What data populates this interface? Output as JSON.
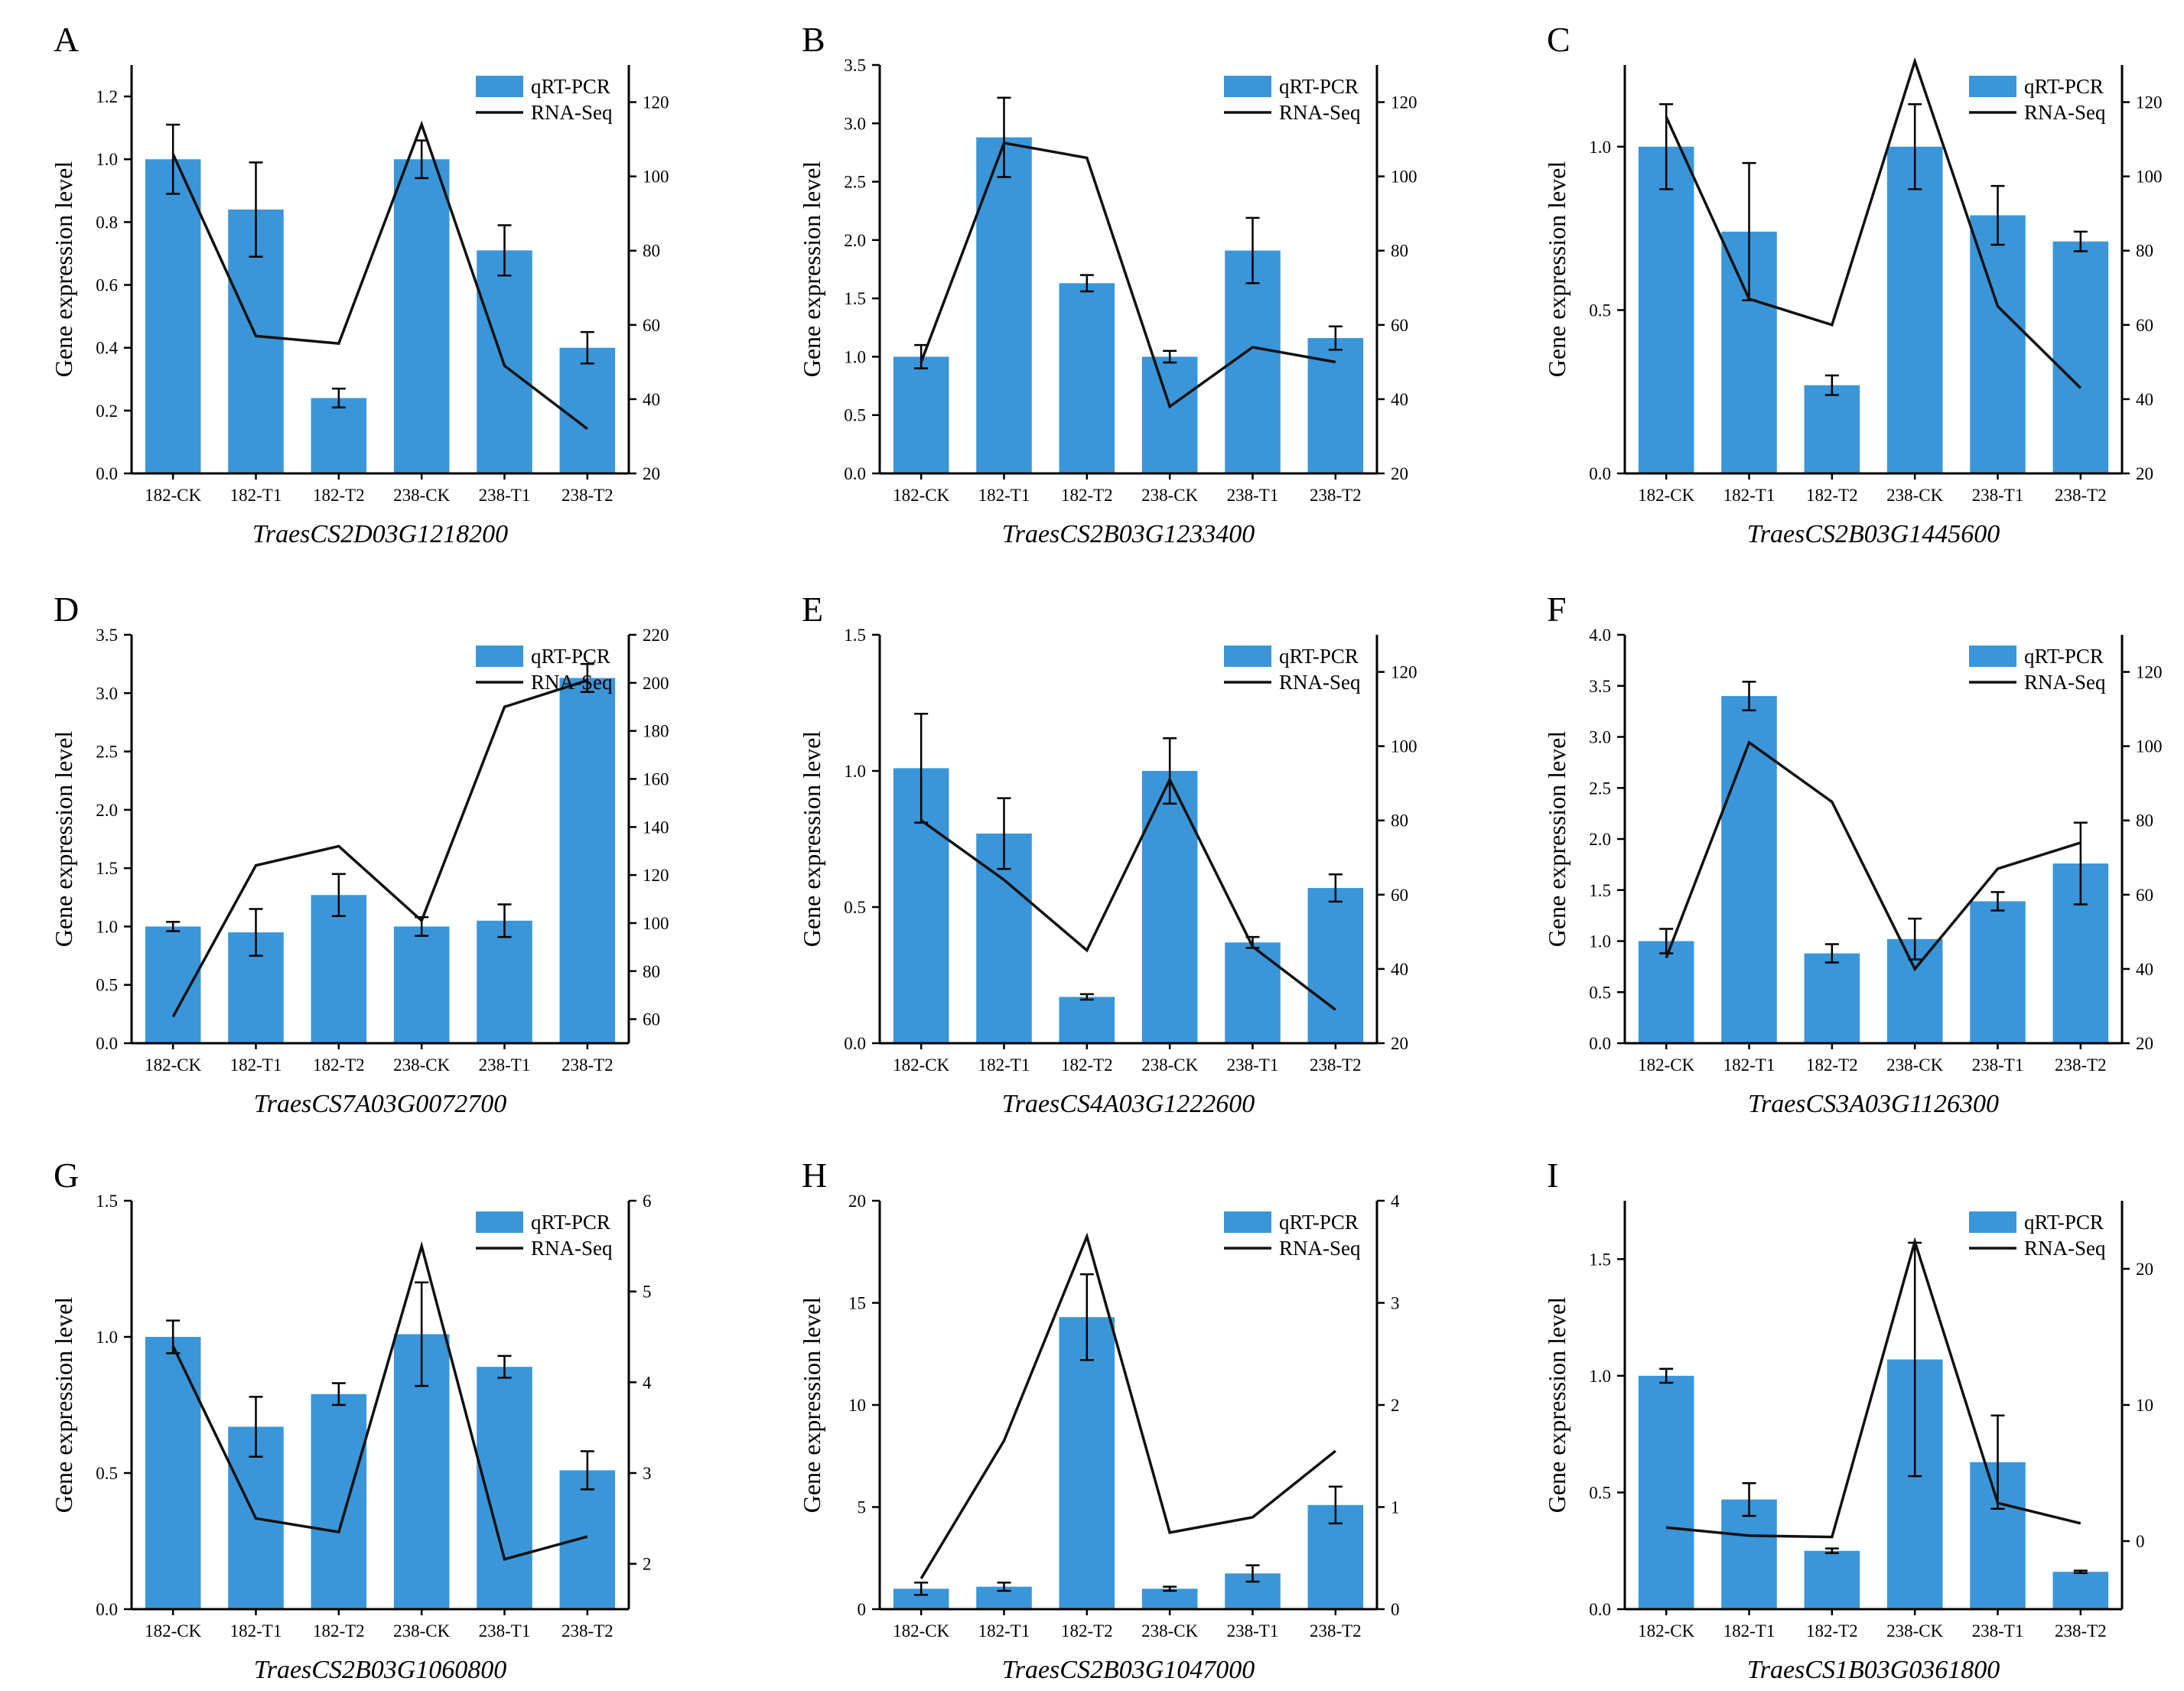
{
  "colors": {
    "bar": "#3a96d9",
    "line": "#111111",
    "axis": "#000000"
  },
  "legend": {
    "bar_label": "qRT-PCR",
    "line_label": "RNA-Seq"
  },
  "y_axis_label": "Gene expression level",
  "chart_data": [
    {
      "panel": "A",
      "type": "bar+line",
      "title": "TraesCS2D03G1218200",
      "categories": [
        "182-CK",
        "182-T1",
        "182-T2",
        "238-CK",
        "238-T1",
        "238-T2"
      ],
      "series": [
        {
          "name": "qRT-PCR",
          "type": "bar",
          "axis": "left",
          "values": [
            1.0,
            0.84,
            0.24,
            1.0,
            0.71,
            0.4
          ],
          "errors": [
            0.11,
            0.15,
            0.03,
            0.06,
            0.08,
            0.05
          ]
        },
        {
          "name": "RNA-Seq",
          "type": "line",
          "axis": "right",
          "values": [
            106,
            57,
            55,
            114,
            49,
            32
          ]
        }
      ],
      "ylim_left": [
        0,
        1.3
      ],
      "yticks_left": [
        0.0,
        0.2,
        0.4,
        0.6,
        0.8,
        1.0,
        1.2
      ],
      "ylim_right": [
        20,
        130
      ],
      "yticks_right": [
        20,
        40,
        60,
        80,
        100,
        120
      ],
      "legend_pos": "top-right"
    },
    {
      "panel": "B",
      "type": "bar+line",
      "title": "TraesCS2B03G1233400",
      "categories": [
        "182-CK",
        "182-T1",
        "182-T2",
        "238-CK",
        "238-T1",
        "238-T2"
      ],
      "series": [
        {
          "name": "qRT-PCR",
          "type": "bar",
          "axis": "left",
          "values": [
            1.0,
            2.88,
            1.63,
            1.0,
            1.91,
            1.16
          ],
          "errors": [
            0.1,
            0.34,
            0.07,
            0.05,
            0.28,
            0.1
          ]
        },
        {
          "name": "RNA-Seq",
          "type": "line",
          "axis": "right",
          "values": [
            50,
            109,
            105,
            38,
            54,
            50
          ]
        }
      ],
      "ylim_left": [
        0,
        3.5
      ],
      "yticks_left": [
        0.0,
        0.5,
        1.0,
        1.5,
        2.0,
        2.5,
        3.0,
        3.5
      ],
      "ylim_right": [
        20,
        130
      ],
      "yticks_right": [
        20,
        40,
        60,
        80,
        100,
        120
      ],
      "legend_pos": "top-right"
    },
    {
      "panel": "C",
      "type": "bar+line",
      "title": "TraesCS2B03G1445600",
      "categories": [
        "182-CK",
        "182-T1",
        "182-T2",
        "238-CK",
        "238-T1",
        "238-T2"
      ],
      "series": [
        {
          "name": "qRT-PCR",
          "type": "bar",
          "axis": "left",
          "values": [
            1.0,
            0.74,
            0.27,
            1.0,
            0.79,
            0.71
          ],
          "errors": [
            0.13,
            0.21,
            0.03,
            0.13,
            0.09,
            0.03
          ]
        },
        {
          "name": "RNA-Seq",
          "type": "line",
          "axis": "right",
          "values": [
            116,
            67,
            60,
            131,
            65,
            43
          ]
        }
      ],
      "ylim_left": [
        0,
        1.25
      ],
      "yticks_left": [
        0.0,
        0.5,
        1.0
      ],
      "ylim_right": [
        20,
        130
      ],
      "yticks_right": [
        20,
        40,
        60,
        80,
        100,
        120
      ],
      "legend_pos": "top-right"
    },
    {
      "panel": "D",
      "type": "bar+line",
      "title": "TraesCS7A03G0072700",
      "categories": [
        "182-CK",
        "182-T1",
        "182-T2",
        "238-CK",
        "238-T1",
        "238-T2"
      ],
      "series": [
        {
          "name": "qRT-PCR",
          "type": "bar",
          "axis": "left",
          "values": [
            1.0,
            0.95,
            1.27,
            1.0,
            1.05,
            3.13
          ],
          "errors": [
            0.04,
            0.2,
            0.18,
            0.08,
            0.14,
            0.12
          ]
        },
        {
          "name": "RNA-Seq",
          "type": "line",
          "axis": "right",
          "values": [
            61,
            124,
            132,
            101,
            190,
            201
          ]
        }
      ],
      "ylim_left": [
        0,
        3.5
      ],
      "yticks_left": [
        0.0,
        0.5,
        1.0,
        1.5,
        2.0,
        2.5,
        3.0,
        3.5
      ],
      "ylim_right": [
        50,
        220
      ],
      "yticks_right": [
        60,
        80,
        100,
        120,
        140,
        160,
        180,
        200,
        220
      ],
      "legend_pos": "top-right"
    },
    {
      "panel": "E",
      "type": "bar+line",
      "title": "TraesCS4A03G1222600",
      "categories": [
        "182-CK",
        "182-T1",
        "182-T2",
        "238-CK",
        "238-T1",
        "238-T2"
      ],
      "series": [
        {
          "name": "qRT-PCR",
          "type": "bar",
          "axis": "left",
          "values": [
            1.01,
            0.77,
            0.17,
            1.0,
            0.37,
            0.57
          ],
          "errors": [
            0.2,
            0.13,
            0.01,
            0.12,
            0.02,
            0.05
          ]
        },
        {
          "name": "RNA-Seq",
          "type": "line",
          "axis": "right",
          "values": [
            80,
            64,
            45,
            91,
            46,
            29
          ]
        }
      ],
      "ylim_left": [
        0,
        1.5
      ],
      "yticks_left": [
        0.0,
        0.5,
        1.0,
        1.5
      ],
      "ylim_right": [
        20,
        130
      ],
      "yticks_right": [
        20,
        40,
        60,
        80,
        100,
        120
      ],
      "legend_pos": "top-right"
    },
    {
      "panel": "F",
      "type": "bar+line",
      "title": "TraesCS3A03G1126300",
      "categories": [
        "182-CK",
        "182-T1",
        "182-T2",
        "238-CK",
        "238-T1",
        "238-T2"
      ],
      "series": [
        {
          "name": "qRT-PCR",
          "type": "bar",
          "axis": "left",
          "values": [
            1.0,
            3.4,
            0.88,
            1.02,
            1.39,
            1.76
          ],
          "errors": [
            0.12,
            0.14,
            0.09,
            0.2,
            0.09,
            0.4
          ]
        },
        {
          "name": "RNA-Seq",
          "type": "line",
          "axis": "right",
          "values": [
            43,
            101,
            85,
            40,
            67,
            74
          ]
        }
      ],
      "ylim_left": [
        0,
        4.0
      ],
      "yticks_left": [
        0.0,
        0.5,
        1.0,
        1.5,
        2.0,
        2.5,
        3.0,
        3.5,
        4.0
      ],
      "ylim_right": [
        20,
        130
      ],
      "yticks_right": [
        20,
        40,
        60,
        80,
        100,
        120
      ],
      "legend_pos": "top-right"
    },
    {
      "panel": "G",
      "type": "bar+line",
      "title": "TraesCS2B03G1060800",
      "categories": [
        "182-CK",
        "182-T1",
        "182-T2",
        "238-CK",
        "238-T1",
        "238-T2"
      ],
      "series": [
        {
          "name": "qRT-PCR",
          "type": "bar",
          "axis": "left",
          "values": [
            1.0,
            0.67,
            0.79,
            1.01,
            0.89,
            0.51
          ],
          "errors": [
            0.06,
            0.11,
            0.04,
            0.19,
            0.04,
            0.07
          ]
        },
        {
          "name": "RNA-Seq",
          "type": "line",
          "axis": "right",
          "values": [
            4.4,
            2.5,
            2.35,
            5.5,
            2.05,
            2.3
          ]
        }
      ],
      "ylim_left": [
        0,
        1.5
      ],
      "yticks_left": [
        0.0,
        0.5,
        1.0,
        1.5
      ],
      "ylim_right": [
        1.5,
        6.0
      ],
      "yticks_right": [
        2,
        3,
        4,
        5,
        6
      ],
      "legend_pos": "top-right"
    },
    {
      "panel": "H",
      "type": "bar+line",
      "title": "TraesCS2B03G1047000",
      "categories": [
        "182-CK",
        "182-T1",
        "182-T2",
        "238-CK",
        "238-T1",
        "238-T2"
      ],
      "series": [
        {
          "name": "qRT-PCR",
          "type": "bar",
          "axis": "left",
          "values": [
            1.0,
            1.1,
            14.3,
            1.0,
            1.75,
            5.1
          ],
          "errors": [
            0.3,
            0.2,
            2.1,
            0.1,
            0.4,
            0.9
          ]
        },
        {
          "name": "RNA-Seq",
          "type": "line",
          "axis": "right",
          "values": [
            0.3,
            1.65,
            3.65,
            0.75,
            0.9,
            1.55
          ]
        }
      ],
      "ylim_left": [
        0,
        20
      ],
      "yticks_left": [
        0,
        5,
        10,
        15,
        20
      ],
      "ylim_right": [
        0,
        4
      ],
      "yticks_right": [
        0,
        1,
        2,
        3,
        4
      ],
      "legend_pos": "top-right"
    },
    {
      "panel": "I",
      "type": "bar+line",
      "title": "TraesCS1B03G0361800",
      "categories": [
        "182-CK",
        "182-T1",
        "182-T2",
        "238-CK",
        "238-T1",
        "238-T2"
      ],
      "series": [
        {
          "name": "qRT-PCR",
          "type": "bar",
          "axis": "left",
          "values": [
            1.0,
            0.47,
            0.25,
            1.07,
            0.63,
            0.16
          ],
          "errors": [
            0.03,
            0.07,
            0.01,
            0.5,
            0.2,
            0.005
          ]
        },
        {
          "name": "RNA-Seq",
          "type": "line",
          "axis": "right",
          "values": [
            1.0,
            0.4,
            0.3,
            22.0,
            2.8,
            1.3
          ]
        }
      ],
      "ylim_left": [
        0,
        1.75
      ],
      "yticks_left": [
        0.0,
        0.5,
        1.0,
        1.5
      ],
      "ylim_right": [
        -5,
        25
      ],
      "yticks_right": [
        0,
        10,
        20
      ],
      "legend_pos": "top-right"
    }
  ]
}
